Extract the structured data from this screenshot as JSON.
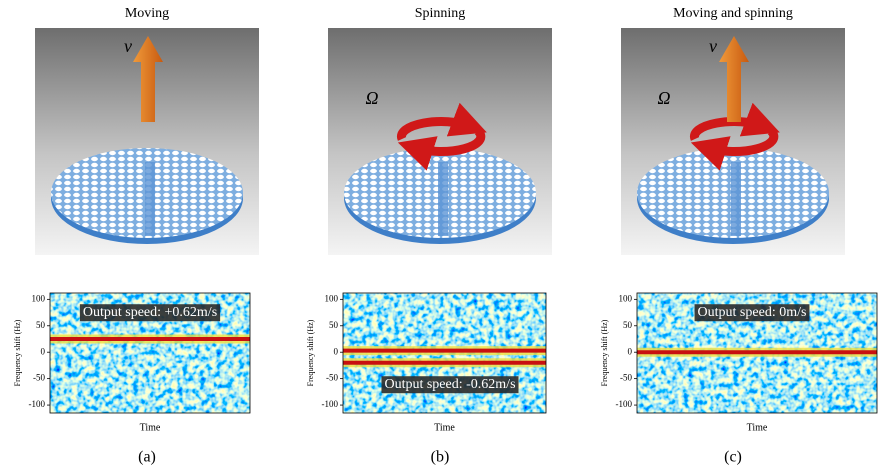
{
  "panels": [
    {
      "title": "Moving",
      "symbols": [
        "v"
      ],
      "spectrogram": {
        "ylabel": "Frequency shift (Hz)",
        "xlabel": "Time",
        "ylim": [
          -115,
          112
        ],
        "yticks": [
          100,
          50,
          0,
          -50,
          -100
        ],
        "bands": [
          25
        ],
        "annotation": "Output speed: +0.62m/s"
      },
      "caption": "(a)"
    },
    {
      "title": "Spinning",
      "symbols": [
        "Ω"
      ],
      "spectrogram": {
        "ylabel": "Frequency shift (Hz)",
        "xlabel": "Time",
        "ylim": [
          -115,
          112
        ],
        "yticks": [
          100,
          50,
          0,
          -50,
          -100
        ],
        "bands": [
          3,
          -20
        ],
        "annotation": "Output speed: -0.62m/s"
      },
      "caption": "(b)"
    },
    {
      "title": "Moving and spinning",
      "symbols": [
        "v",
        "Ω"
      ],
      "spectrogram": {
        "ylabel": "Frequency shift (Hz)",
        "xlabel": "Time",
        "ylim": [
          -115,
          112
        ],
        "yticks": [
          100,
          50,
          0,
          -50,
          -100
        ],
        "bands": [
          0
        ],
        "annotation": "Output speed: 0m/s"
      },
      "caption": "(c)"
    }
  ]
}
